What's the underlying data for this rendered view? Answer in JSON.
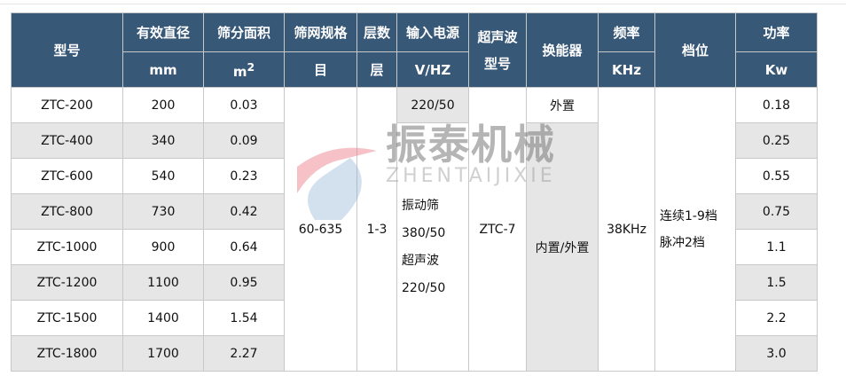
{
  "header": {
    "model": "型号",
    "diameter": "有效直径",
    "diameter_unit": "mm",
    "area": "筛分面积",
    "area_unit": "m",
    "area_unit_sup": "2",
    "mesh": "筛网规格",
    "mesh_unit": "目",
    "layers": "层数",
    "layers_unit": "层",
    "power_input": "输入电源",
    "power_input_unit": "V/HZ",
    "ultra_l1": "超声波",
    "ultra_l2": "型号",
    "transducer": "换能器",
    "freq": "频率",
    "freq_unit": "KHz",
    "gear": "档位",
    "power": "功率",
    "power_unit": "Kw"
  },
  "rows": [
    {
      "model": "ZTC-200",
      "diameter": "200",
      "area": "0.03",
      "power": "0.18"
    },
    {
      "model": "ZTC-400",
      "diameter": "340",
      "area": "0.09",
      "power": "0.25"
    },
    {
      "model": "ZTC-600",
      "diameter": "540",
      "area": "0.23",
      "power": "0.55"
    },
    {
      "model": "ZTC-800",
      "diameter": "730",
      "area": "0.42",
      "power": "0.75"
    },
    {
      "model": "ZTC-1000",
      "diameter": "900",
      "area": "0.64",
      "power": "1.1"
    },
    {
      "model": "ZTC-1200",
      "diameter": "1100",
      "area": "0.95",
      "power": "1.5"
    },
    {
      "model": "ZTC-1500",
      "diameter": "1400",
      "area": "1.54",
      "power": "2.2"
    },
    {
      "model": "ZTC-1800",
      "diameter": "1700",
      "area": "2.27",
      "power": "3.0"
    }
  ],
  "merged": {
    "mesh": "60-635",
    "layers": "1-3",
    "input_first": "220/50",
    "input_rest": [
      "振动筛",
      "380/50",
      "超声波",
      "220/50"
    ],
    "ultra_model": "ZTC-7",
    "transducer_first": "外置",
    "transducer_rest": "内置/外置",
    "freq": "38KHz",
    "gear": [
      "连续1-9档",
      "脉冲2档"
    ]
  },
  "watermark": {
    "cn": "振泰机械",
    "en": "ZHENTAIJIXIE"
  },
  "colors": {
    "header_bg": "#385878",
    "alt_row": "#e6e6e6"
  }
}
